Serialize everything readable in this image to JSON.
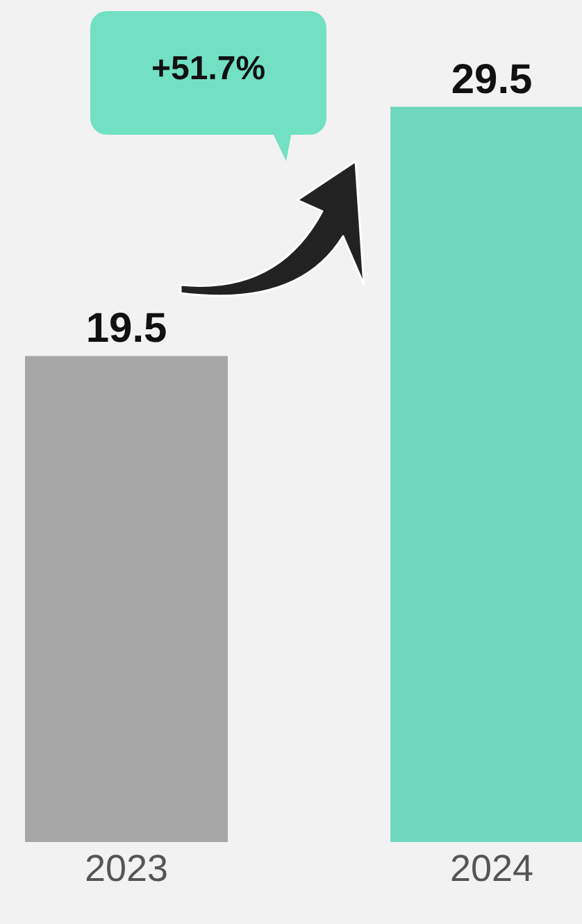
{
  "chart_data": {
    "type": "bar",
    "categories": [
      "2023",
      "2024"
    ],
    "values": [
      19.5,
      29.5
    ],
    "colors": [
      "#a6a6a6",
      "#6fd8be"
    ],
    "data_labels": true,
    "tick_labels": "x",
    "grid": false,
    "annotations": [
      "+51.7%"
    ]
  }
}
